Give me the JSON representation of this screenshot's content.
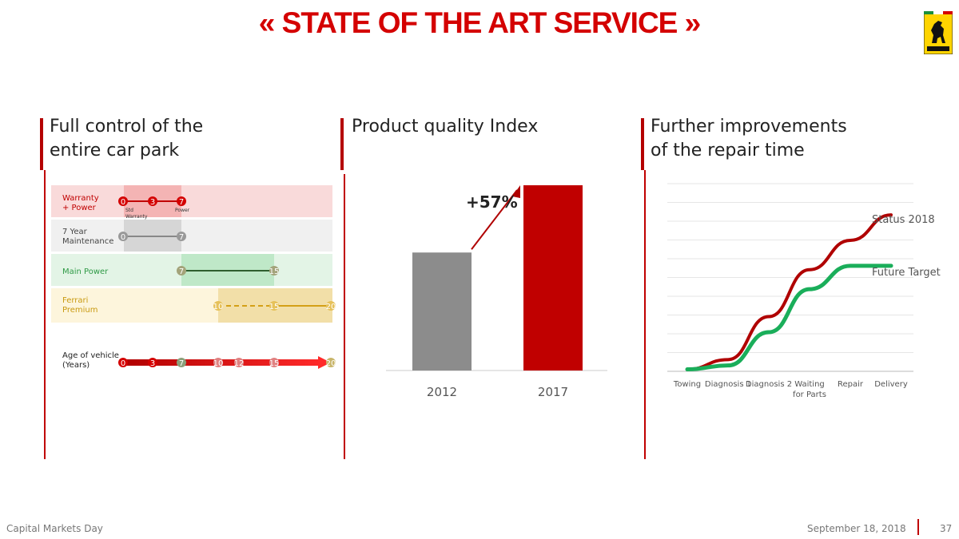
{
  "header": {
    "title": "« STATE OF THE ART SERVICE »"
  },
  "panels": {
    "left": {
      "title_line1": "Full control of the",
      "title_line2": "entire car park"
    },
    "middle": {
      "title": "Product quality Index"
    },
    "right": {
      "title_line1": "Further improvements",
      "title_line2": "of the repair time"
    }
  },
  "timeline": {
    "rows": [
      {
        "label": "Warranty\n+ Power",
        "points": [
          "0",
          "3",
          "7"
        ],
        "sub_labels": [
          "Std\nWarranty",
          "Power"
        ],
        "color": "#c00000"
      },
      {
        "label": "7 Year\nMaintenance",
        "points": [
          "0",
          "7"
        ],
        "color": "#888888"
      },
      {
        "label": "Main Power",
        "points": [
          "7",
          "15"
        ],
        "color": "#2f7d3a"
      },
      {
        "label": "Ferrari\nPremium",
        "points": [
          "10",
          "15",
          "20"
        ],
        "color": "#d4a017"
      }
    ],
    "age_label": "Age of vehicle\n(Years)",
    "age_points": [
      "0",
      "3",
      "7",
      "10",
      "12",
      "15",
      "20"
    ]
  },
  "chart_data": [
    {
      "type": "bar",
      "categories": [
        "2012",
        "2017"
      ],
      "values": [
        100,
        157
      ],
      "annotation": "+57%",
      "colors": [
        "#8c8c8c",
        "#c00000"
      ]
    },
    {
      "type": "line",
      "x": [
        "Towing",
        "Diagnosis 1",
        "Diagnosis 2",
        "Waiting for Parts",
        "Repair",
        "Delivery"
      ],
      "series": [
        {
          "name": "Status 2018",
          "values": [
            0.5,
            3,
            14,
            26,
            33.5,
            40
          ],
          "color": "#b00000"
        },
        {
          "name": "Future Target",
          "values": [
            0.5,
            1.5,
            10,
            21,
            27,
            27
          ],
          "color": "#1aae5a"
        }
      ],
      "ylim": [
        0,
        48
      ],
      "grid": true
    }
  ],
  "footer": {
    "left": "Capital Markets Day",
    "date": "September 18, 2018",
    "page": "37"
  }
}
